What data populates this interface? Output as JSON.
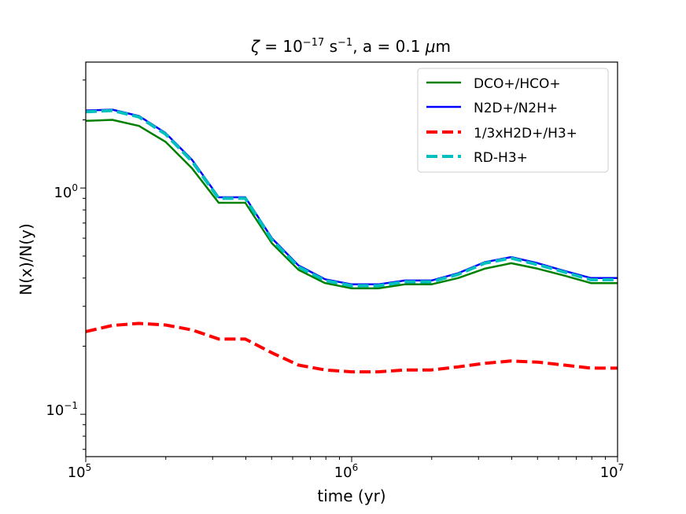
{
  "colors": {
    "dco_hco": "#008000",
    "n2d_n2h": "#0000ff",
    "h2d_h3": "#ff0000",
    "rd_h3": "#00bfbf"
  },
  "chart_data": {
    "type": "line",
    "title": {
      "zeta": "ζ",
      "eq1": " = 10",
      "exp1": "−17",
      "unit": " s",
      "exp2": "−1",
      "rest": ", a = 0.1 ",
      "mu": "μ",
      "m": "m"
    },
    "xlabel": "time (yr)",
    "ylabel": "N(x)/N(y)",
    "xscale": "log",
    "yscale": "log",
    "xlim": [
      100000,
      10000000
    ],
    "ylim": [
      0.065,
      3.6
    ],
    "xticks": [
      {
        "value": 100000,
        "base": "10",
        "exp": "5"
      },
      {
        "value": 1000000,
        "base": "10",
        "exp": "6"
      },
      {
        "value": 10000000,
        "base": "10",
        "exp": "7"
      }
    ],
    "yticks": [
      {
        "value": 1,
        "base": "10",
        "exp": "0"
      },
      {
        "value": 0.1,
        "base": "10",
        "exp": "−1"
      }
    ],
    "x": [
      100000,
      125900,
      158500,
      199500,
      251200,
      316200,
      398100,
      501200,
      631000,
      794300,
      1000000,
      1259000,
      1585000,
      1995000,
      2512000,
      3162000,
      3981000,
      5012000,
      6310000,
      7943000,
      10000000
    ],
    "series": [
      {
        "name": "DCO+/HCO+",
        "key": "dco_hco",
        "style": "solid",
        "values": [
          1.98,
          2.0,
          1.88,
          1.6,
          1.22,
          0.86,
          0.86,
          0.57,
          0.435,
          0.38,
          0.36,
          0.36,
          0.375,
          0.375,
          0.4,
          0.44,
          0.465,
          0.44,
          0.41,
          0.38,
          0.38
        ]
      },
      {
        "name": "N2D+/N2H+",
        "key": "n2d_n2h",
        "style": "solid",
        "values": [
          2.2,
          2.22,
          2.08,
          1.75,
          1.33,
          0.91,
          0.91,
          0.6,
          0.455,
          0.395,
          0.375,
          0.375,
          0.39,
          0.39,
          0.42,
          0.47,
          0.495,
          0.465,
          0.43,
          0.4,
          0.4
        ]
      },
      {
        "name": "1/3xH2D+/H3+",
        "key": "h2d_h3",
        "style": "dashed",
        "values": [
          0.232,
          0.247,
          0.252,
          0.248,
          0.236,
          0.215,
          0.215,
          0.187,
          0.165,
          0.157,
          0.154,
          0.154,
          0.157,
          0.157,
          0.162,
          0.168,
          0.172,
          0.17,
          0.165,
          0.16,
          0.16
        ]
      },
      {
        "name": "RD-H3+",
        "key": "rd_h3",
        "style": "dashed",
        "values": [
          2.17,
          2.2,
          2.06,
          1.73,
          1.31,
          0.9,
          0.9,
          0.59,
          0.448,
          0.39,
          0.37,
          0.37,
          0.385,
          0.385,
          0.415,
          0.465,
          0.49,
          0.458,
          0.425,
          0.393,
          0.393
        ]
      }
    ],
    "legend_position": "upper-right"
  }
}
